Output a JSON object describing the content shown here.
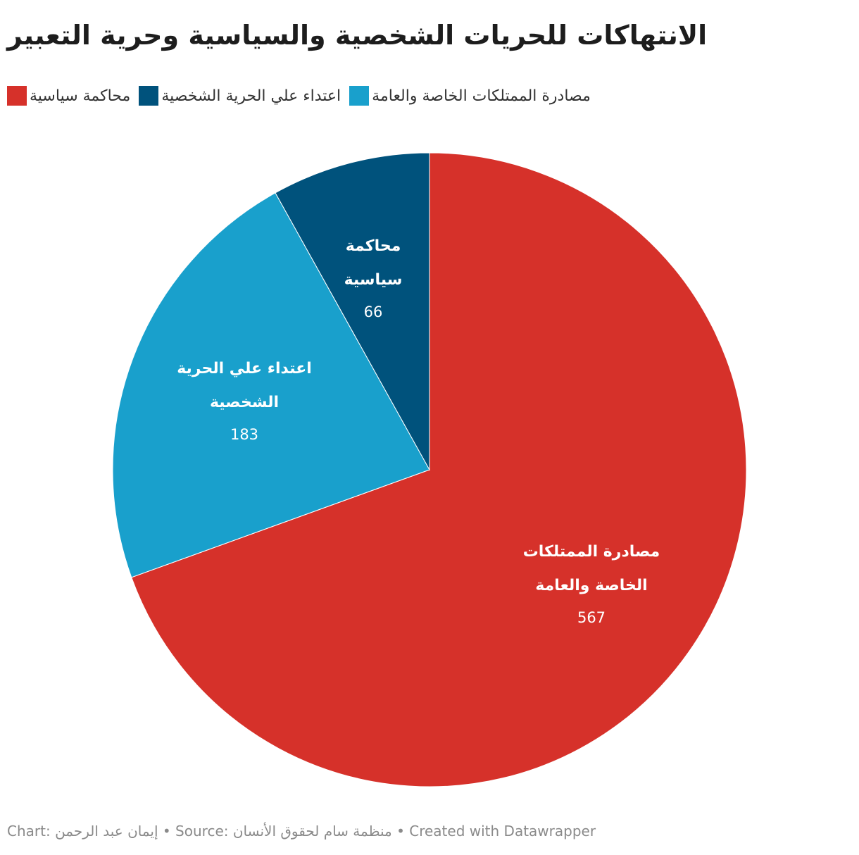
{
  "title": "الانتهاكات للحريات الشخصية والسياسية وحرية التعبير",
  "legend": [
    {
      "label": "مصادرة الممتلكات الخاصة والعامة",
      "color": "#d6312a"
    },
    {
      "label": "اعتداء علي الحرية الشخصية",
      "color": "#19a0cc"
    },
    {
      "label": "محاكمة سياسية",
      "color": "#00527c"
    }
  ],
  "footer": "Chart: إيمان عبد الرحمن • Source: منظمة سام لحقوق الأنسان • Created with Datawrapper",
  "chart_data": {
    "type": "pie",
    "categories": [
      "مصادرة الممتلكات الخاصة والعامة",
      "اعتداء علي الحرية الشخصية",
      "محاكمة سياسية"
    ],
    "values": [
      567,
      183,
      66
    ],
    "colors": [
      "#d6312a",
      "#19a0cc",
      "#00527c"
    ],
    "slice_labels": [
      {
        "lines": [
          "مصادرة الممتلكات",
          "الخاصة والعامة"
        ],
        "value": "567"
      },
      {
        "lines": [
          "اعتداء علي الحرية",
          "الشخصية"
        ],
        "value": "183"
      },
      {
        "lines": [
          "محاكمة",
          "سياسية"
        ],
        "value": "66"
      }
    ],
    "legend_position": "top-left"
  }
}
